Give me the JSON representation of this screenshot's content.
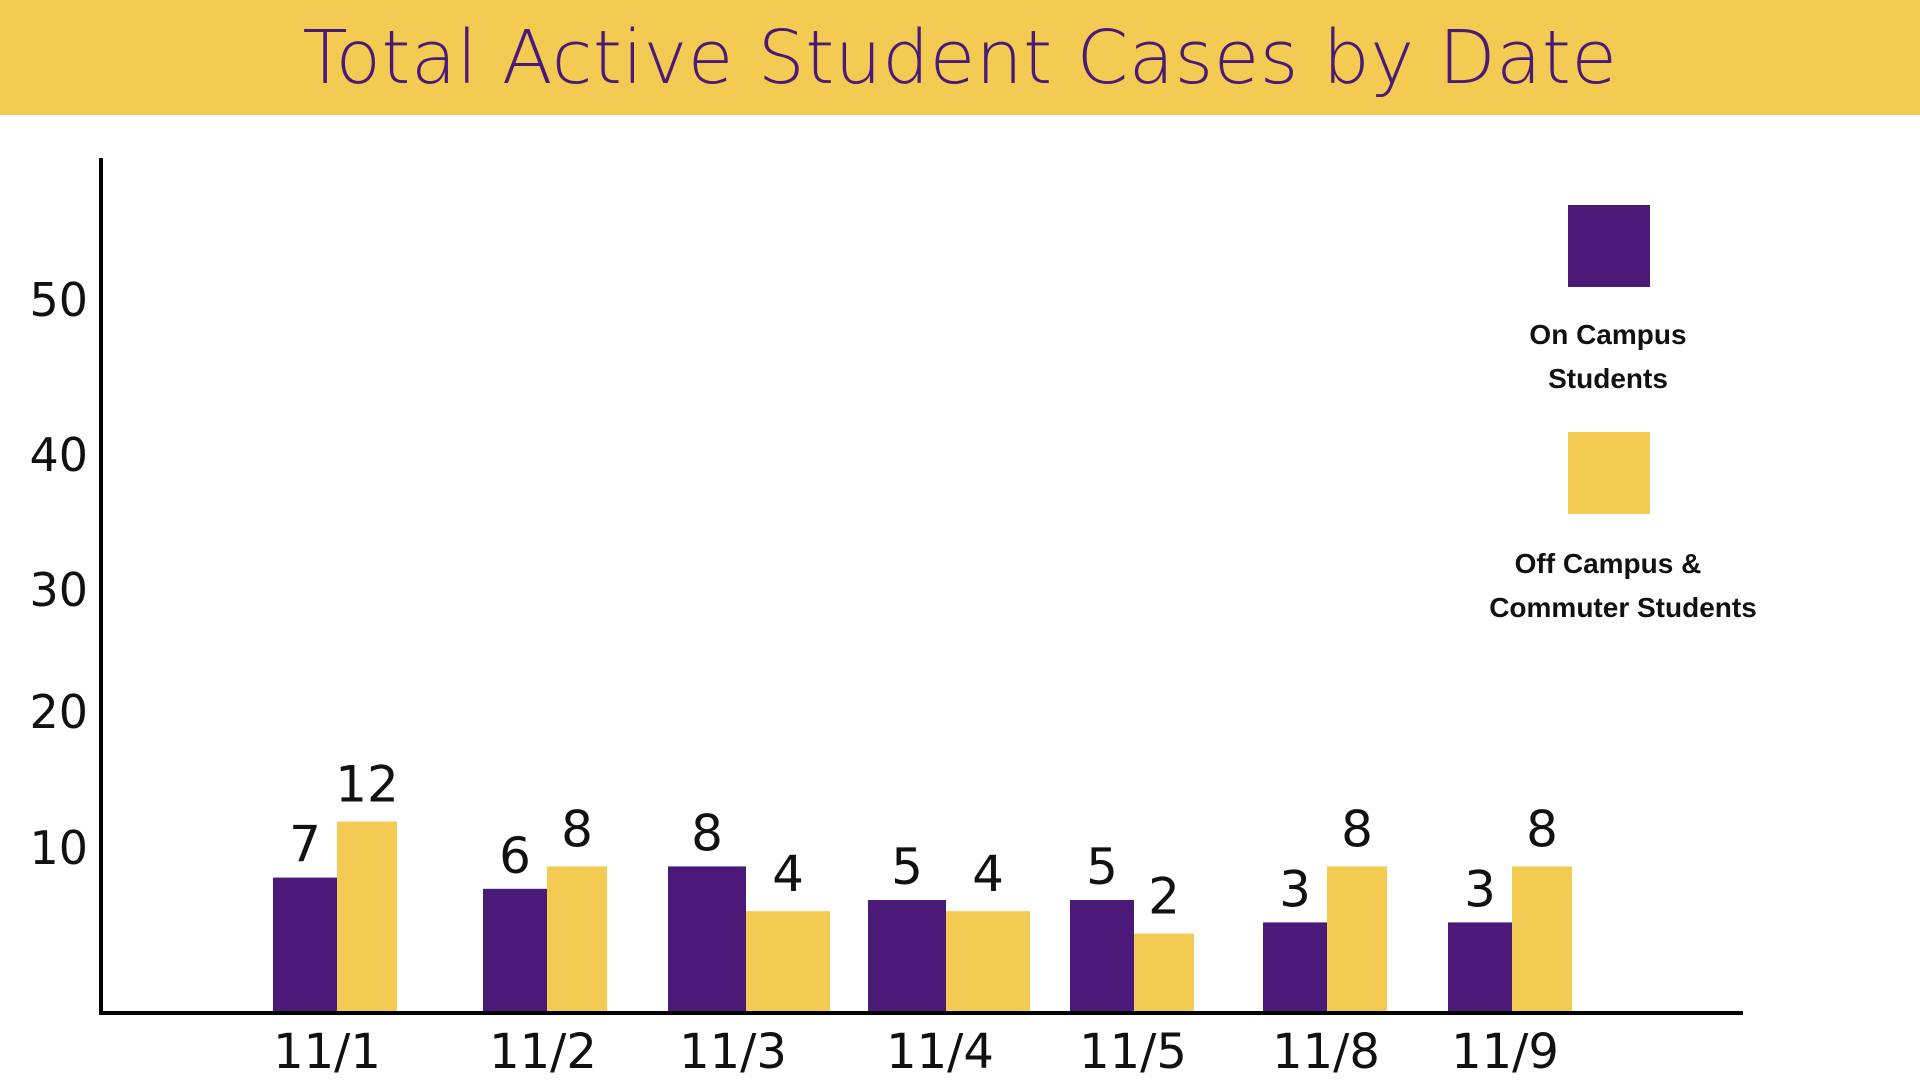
{
  "colors": {
    "banner": "#f3ca52",
    "title_text": "#4a1a78",
    "on_campus": "#4b1a78",
    "off_campus": "#f3ca52"
  },
  "chart_data": {
    "type": "bar",
    "title": "Total Active Student Cases by Date",
    "xlabel": "",
    "ylabel": "",
    "ylim": [
      0,
      60
    ],
    "y_ticks": [
      10,
      20,
      30,
      40,
      50
    ],
    "grid": false,
    "legend_position": "right",
    "categories": [
      "11/1",
      "11/2",
      "11/3",
      "11/4",
      "11/5",
      "11/8",
      "11/9"
    ],
    "series": [
      {
        "name": "On Campus Students",
        "legend_lines": [
          "On Campus",
          "Students"
        ],
        "color": "#4b1a78",
        "values": [
          7,
          6,
          8,
          5,
          5,
          3,
          3
        ],
        "labels": [
          "7",
          "6",
          "8",
          "5",
          "5",
          "3",
          "3"
        ]
      },
      {
        "name": "Off Campus & Commuter Students",
        "legend_lines": [
          "Off Campus &",
          "Commuter Students"
        ],
        "color": "#f3ca52",
        "values": [
          12,
          8,
          4,
          4,
          2,
          8,
          8
        ],
        "labels": [
          "12",
          "8",
          "4",
          "4",
          "2",
          "8",
          "8"
        ]
      }
    ]
  }
}
